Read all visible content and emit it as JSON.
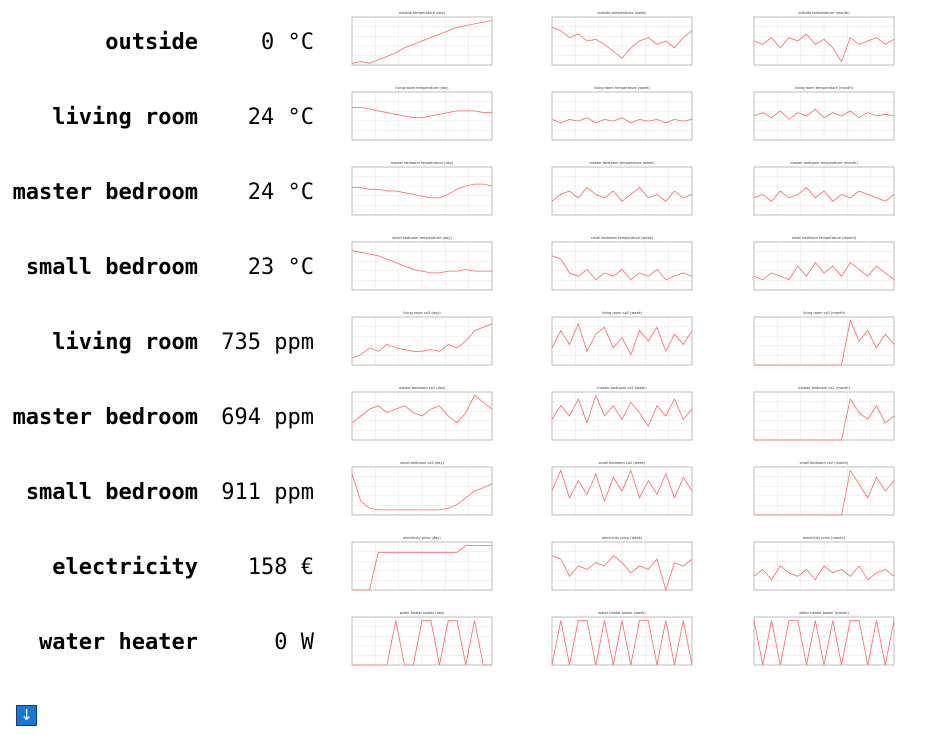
{
  "rows": [
    {
      "label": "outside",
      "value": "0 °C",
      "graphs": [
        {
          "title": "outside temperature (day)",
          "y": [
            1,
            2,
            1,
            3,
            5,
            7,
            10,
            12,
            14,
            16,
            18,
            20,
            22,
            23,
            24,
            25,
            26
          ]
        },
        {
          "title": "outside temperature (week)",
          "y": [
            22,
            20,
            16,
            18,
            14,
            15,
            12,
            8,
            4,
            10,
            14,
            16,
            12,
            14,
            10,
            16,
            20
          ]
        },
        {
          "title": "outside temperature (month)",
          "y": [
            14,
            12,
            16,
            10,
            16,
            14,
            18,
            12,
            15,
            10,
            2,
            16,
            12,
            14,
            16,
            12,
            15
          ]
        }
      ]
    },
    {
      "label": "living room",
      "value": "24 °C",
      "graphs": [
        {
          "title": "living room temperature (day)",
          "y": [
            19,
            19,
            18,
            17,
            16,
            15,
            14,
            13,
            13,
            14,
            15,
            16,
            17,
            17,
            17,
            16,
            16
          ]
        },
        {
          "title": "living room temperature (week)",
          "y": [
            12,
            10,
            12,
            11,
            13,
            10,
            12,
            11,
            13,
            10,
            12,
            11,
            12,
            10,
            12,
            11,
            12
          ]
        },
        {
          "title": "living room temperature (month)",
          "y": [
            14,
            16,
            13,
            17,
            12,
            16,
            14,
            18,
            13,
            16,
            14,
            17,
            13,
            16,
            14,
            15,
            14
          ]
        }
      ]
    },
    {
      "label": "master bedroom",
      "value": "24 °C",
      "graphs": [
        {
          "title": "master bedroom temperature (day)",
          "y": [
            16,
            16,
            15,
            15,
            14,
            14,
            13,
            12,
            11,
            10,
            10,
            12,
            15,
            17,
            18,
            18,
            17
          ]
        },
        {
          "title": "master bedroom temperature (week)",
          "y": [
            8,
            12,
            14,
            10,
            16,
            12,
            10,
            14,
            8,
            12,
            16,
            10,
            12,
            8,
            14,
            10,
            12
          ]
        },
        {
          "title": "master bedroom temperature (month)",
          "y": [
            10,
            12,
            8,
            14,
            10,
            12,
            16,
            10,
            14,
            8,
            12,
            10,
            14,
            12,
            10,
            8,
            12
          ]
        }
      ]
    },
    {
      "label": "small bedroom",
      "value": "23 °C",
      "graphs": [
        {
          "title": "small bedroom temperature (day)",
          "y": [
            23,
            22,
            21,
            20,
            18,
            16,
            14,
            12,
            11,
            10,
            10,
            11,
            11,
            12,
            11,
            11,
            11
          ]
        },
        {
          "title": "small bedroom temperature (week)",
          "y": [
            20,
            18,
            10,
            8,
            12,
            6,
            10,
            8,
            12,
            6,
            10,
            8,
            12,
            6,
            8,
            10,
            8
          ]
        },
        {
          "title": "small bedroom temperature (month)",
          "y": [
            8,
            6,
            10,
            8,
            6,
            14,
            8,
            16,
            10,
            14,
            8,
            16,
            12,
            8,
            14,
            10,
            6
          ]
        }
      ]
    },
    {
      "label": "living room",
      "value": "735 ppm",
      "graphs": [
        {
          "title": "living room co2 (day)",
          "y": [
            4,
            6,
            10,
            8,
            12,
            10,
            9,
            8,
            8,
            9,
            8,
            12,
            10,
            14,
            20,
            22,
            24
          ]
        },
        {
          "title": "living room co2 (week)",
          "y": [
            10,
            20,
            12,
            24,
            8,
            18,
            22,
            10,
            16,
            6,
            20,
            14,
            22,
            8,
            18,
            12,
            20
          ]
        },
        {
          "title": "living room co2 (month)",
          "y": [
            0,
            0,
            0,
            0,
            0,
            0,
            0,
            0,
            0,
            0,
            0,
            26,
            14,
            20,
            10,
            18,
            12
          ]
        }
      ]
    },
    {
      "label": "master bedroom",
      "value": "694 ppm",
      "graphs": [
        {
          "title": "master bedroom co2 (day)",
          "y": [
            10,
            14,
            18,
            20,
            16,
            18,
            20,
            16,
            14,
            18,
            20,
            14,
            10,
            16,
            26,
            22,
            18
          ]
        },
        {
          "title": "master bedroom co2 (week)",
          "y": [
            12,
            20,
            14,
            24,
            10,
            26,
            14,
            20,
            12,
            22,
            16,
            8,
            20,
            14,
            24,
            12,
            18
          ]
        },
        {
          "title": "master bedroom co2 (month)",
          "y": [
            0,
            0,
            0,
            0,
            0,
            0,
            0,
            0,
            0,
            0,
            0,
            24,
            16,
            12,
            20,
            10,
            14
          ]
        }
      ]
    },
    {
      "label": "small bedroom",
      "value": "911 ppm",
      "graphs": [
        {
          "title": "small bedroom co2 (day)",
          "y": [
            24,
            8,
            4,
            3,
            3,
            3,
            3,
            3,
            3,
            3,
            3,
            4,
            6,
            10,
            14,
            16,
            18
          ]
        },
        {
          "title": "small bedroom co2 (week)",
          "y": [
            14,
            26,
            10,
            20,
            12,
            24,
            8,
            22,
            14,
            26,
            10,
            20,
            12,
            24,
            10,
            22,
            14
          ]
        },
        {
          "title": "small bedroom co2 (month)",
          "y": [
            0,
            0,
            0,
            0,
            0,
            0,
            0,
            0,
            0,
            0,
            0,
            26,
            18,
            10,
            22,
            14,
            20
          ]
        }
      ]
    },
    {
      "label": "electricity",
      "value": "158 €",
      "graphs": [
        {
          "title": "electricity price (day)",
          "y": [
            0,
            0,
            0,
            22,
            22,
            22,
            22,
            22,
            22,
            22,
            22,
            22,
            22,
            26,
            26,
            26,
            26
          ]
        },
        {
          "title": "electricity price (week)",
          "y": [
            20,
            18,
            8,
            14,
            12,
            16,
            14,
            20,
            16,
            10,
            14,
            12,
            18,
            0,
            16,
            14,
            18
          ]
        },
        {
          "title": "electricity price (month)",
          "y": [
            8,
            12,
            6,
            14,
            10,
            8,
            12,
            6,
            14,
            10,
            12,
            8,
            14,
            6,
            10,
            12,
            8
          ]
        }
      ]
    },
    {
      "label": "water heater",
      "value": "0 W",
      "graphs": [
        {
          "title": "water heater power (day)",
          "y": [
            0,
            0,
            0,
            0,
            0,
            26,
            0,
            0,
            26,
            26,
            0,
            26,
            26,
            0,
            26,
            0,
            0
          ]
        },
        {
          "title": "water heater power (week)",
          "y": [
            0,
            26,
            0,
            26,
            26,
            0,
            26,
            0,
            26,
            0,
            26,
            26,
            0,
            26,
            0,
            26,
            0
          ]
        },
        {
          "title": "water heater power (month)",
          "y": [
            26,
            0,
            26,
            0,
            26,
            26,
            0,
            26,
            0,
            26,
            0,
            26,
            26,
            0,
            26,
            0,
            26
          ]
        }
      ]
    }
  ],
  "scroll_button": {
    "glyph": "↓"
  },
  "colors": {
    "line": "#ff6666",
    "grid": "#e6e6e6",
    "axis": "#888888",
    "button": "#1b78d0"
  }
}
